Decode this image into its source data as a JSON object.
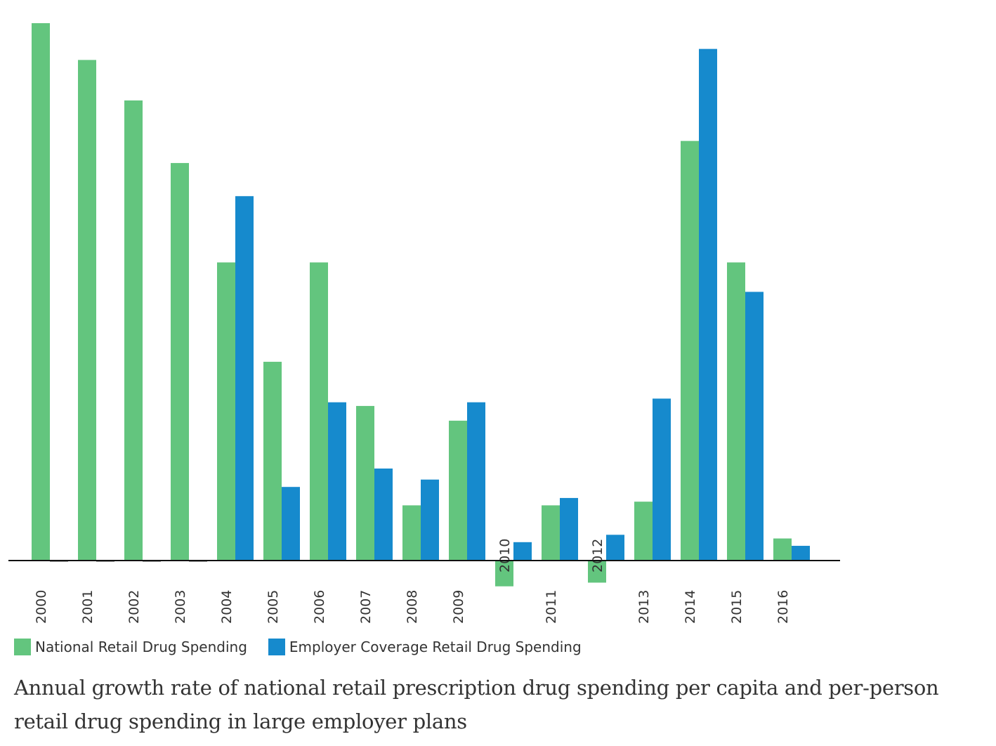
{
  "chart_data": {
    "type": "bar",
    "title": "Annual growth rate of national retail prescription drug spending per capita and per-person retail drug spending in large employer plans",
    "xlabel": "",
    "ylabel": "",
    "grid": false,
    "legend_position": "bottom-left",
    "categories": [
      "2000",
      "2001",
      "2002",
      "2003",
      "2004",
      "2005",
      "2006",
      "2007",
      "2008",
      "2009",
      "2010",
      "2011",
      "2012",
      "2013",
      "2014",
      "2015",
      "2016"
    ],
    "series": [
      {
        "name": "National Retail Drug Spending",
        "color": "#63c57e",
        "values": [
          14.6,
          13.6,
          12.5,
          10.8,
          8.1,
          5.4,
          8.1,
          4.2,
          1.5,
          3.8,
          -0.7,
          1.5,
          -0.6,
          1.6,
          11.4,
          8.1,
          0.6
        ]
      },
      {
        "name": "Employer Coverage Retail Drug Spending",
        "color": "#168acd",
        "values": [
          null,
          null,
          null,
          null,
          9.9,
          2.0,
          4.3,
          2.5,
          2.2,
          4.3,
          0.5,
          1.7,
          0.7,
          4.4,
          13.9,
          7.3,
          0.4
        ]
      }
    ]
  }
}
